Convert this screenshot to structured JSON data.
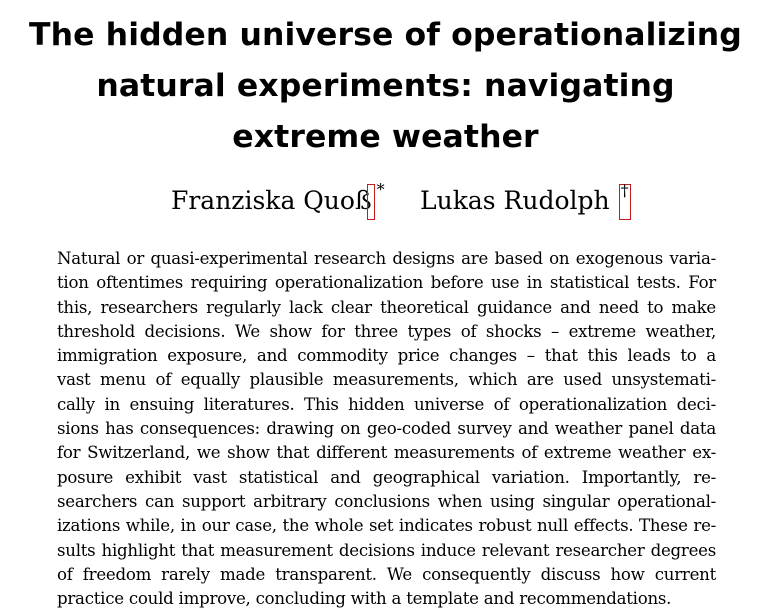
{
  "paper": {
    "title_lines": [
      "The hidden universe of operationalizing",
      "natural experiments: navigating",
      "extreme weather"
    ],
    "authors": [
      {
        "name": "Franziska Quoß",
        "mark": "*"
      },
      {
        "name": "Lukas Rudolph",
        "mark": "†"
      }
    ],
    "abstract_lines": [
      "Natural or quasi-experimental research designs are based on exogenous varia-",
      "tion oftentimes requiring operationalization before use in statistical tests. For",
      "this, researchers regularly lack clear theoretical guidance and need to make",
      "threshold decisions. We show for three types of shocks – extreme weather,",
      "immigration exposure, and commodity price changes – that this leads to a",
      "vast menu of equally plausible measurements, which are used unsystemati-",
      "cally in ensuing literatures. This hidden universe of operationalization deci-",
      "sions has consequences: drawing on geo-coded survey and weather panel data",
      "for Switzerland, we show that different measurements of extreme weather ex-",
      "posure exhibit vast statistical and geographical variation. Importantly, re-",
      "searchers can support arbitrary conclusions when using singular operational-",
      "izations while, in our case, the whole set indicates robust null effects. These re-",
      "sults highlight that measurement decisions induce relevant researcher degrees",
      "of freedom rarely made transparent. We consequently discuss how current",
      "practice could improve, concluding with a template and recommendations."
    ],
    "link_box_color": "#c41d1d"
  }
}
